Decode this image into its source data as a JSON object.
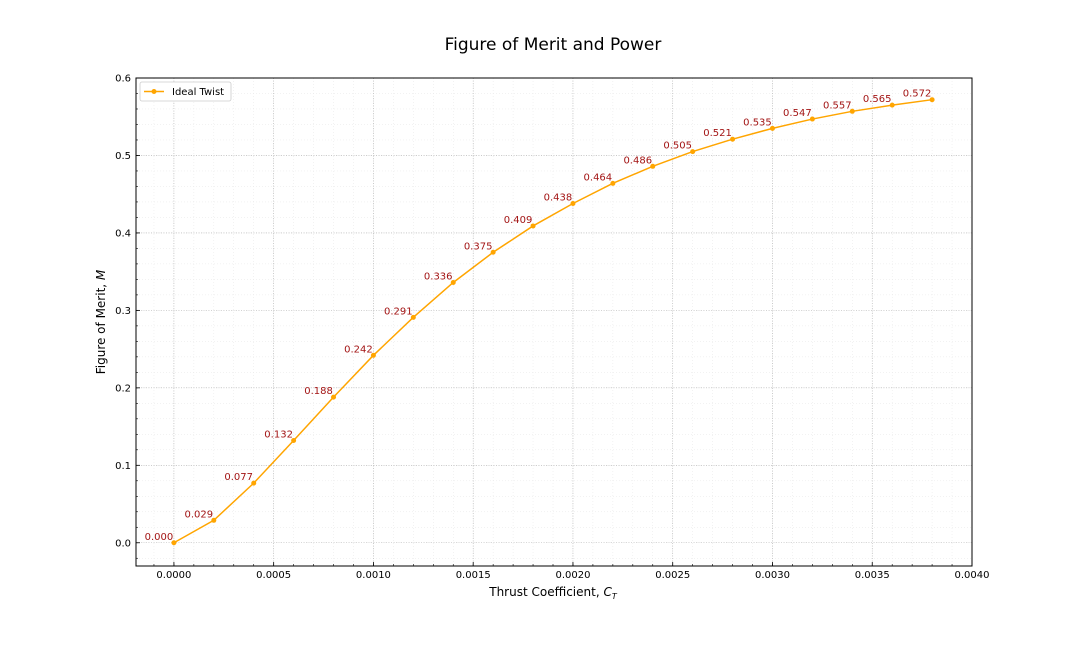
{
  "chart_data": {
    "type": "line",
    "title": "Figure of Merit and Power",
    "xlabel": "Thrust Coefficient, ",
    "xlabel_symbol": "C",
    "xlabel_subscript": "T",
    "ylabel": "Figure of Merit, ",
    "ylabel_symbol": "M",
    "xlim": [
      -0.00019,
      0.004
    ],
    "ylim": [
      -0.03,
      0.6
    ],
    "x_ticks": [
      "0.0000",
      "0.0005",
      "0.0010",
      "0.0015",
      "0.0020",
      "0.0025",
      "0.0030",
      "0.0035",
      "0.0040"
    ],
    "y_ticks": [
      "0.0",
      "0.1",
      "0.2",
      "0.3",
      "0.4",
      "0.5",
      "0.6"
    ],
    "grid": true,
    "legend_position": "top-left",
    "series": [
      {
        "name": "Ideal Twist",
        "color": "#ffa500",
        "x": [
          0.0,
          0.0002,
          0.0004,
          0.0006,
          0.0008,
          0.001,
          0.0012,
          0.0014,
          0.0016,
          0.0018,
          0.002,
          0.0022,
          0.0024,
          0.0026,
          0.0028,
          0.003,
          0.0032,
          0.0034,
          0.0036,
          0.0038
        ],
        "y": [
          0.0,
          0.029,
          0.077,
          0.132,
          0.188,
          0.242,
          0.291,
          0.336,
          0.375,
          0.409,
          0.438,
          0.464,
          0.486,
          0.505,
          0.521,
          0.535,
          0.547,
          0.557,
          0.565,
          0.572
        ],
        "labels": [
          "0.000",
          "0.029",
          "0.077",
          "0.132",
          "0.188",
          "0.242",
          "0.291",
          "0.336",
          "0.375",
          "0.409",
          "0.438",
          "0.464",
          "0.486",
          "0.505",
          "0.521",
          "0.535",
          "0.547",
          "0.557",
          "0.565",
          "0.572"
        ]
      }
    ],
    "label_color": "#a31515"
  }
}
